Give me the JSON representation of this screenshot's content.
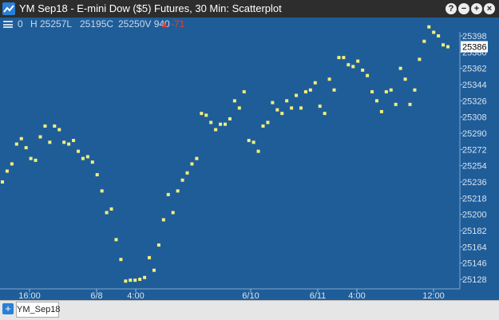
{
  "window": {
    "title": "YM Sep18 - E-mini Dow ($5) Futures, 30 Min: Scatterplot",
    "buttons": {
      "help": "?",
      "minimize": "−",
      "maximize": "+",
      "close": "×"
    }
  },
  "quote": {
    "open": "0",
    "high": "H  25257L",
    "low": "",
    "close": "25195C",
    "volume": "25250V  940",
    "change_arrow": "▲",
    "change": "-71"
  },
  "chart_data": {
    "type": "scatter",
    "marker_color": "#f3f07a",
    "background": "#1f5d99",
    "ylim": [
      25120,
      25408
    ],
    "y_ticks": [
      "25398",
      "25380",
      "25362",
      "25344",
      "25326",
      "25308",
      "25290",
      "25272",
      "25254",
      "25236",
      "25218",
      "25200",
      "25182",
      "25164",
      "25146",
      "25128"
    ],
    "x_ticks": [
      "16:00",
      "6/8",
      "4:00",
      "6/10",
      "6/11",
      "4:00",
      "12:00"
    ],
    "current_price_label": "25386",
    "points": [
      [
        0,
        25236
      ],
      [
        1,
        25248
      ],
      [
        2,
        25256
      ],
      [
        3,
        25278
      ],
      [
        4,
        25284
      ],
      [
        5,
        25274
      ],
      [
        6,
        25262
      ],
      [
        7,
        25260
      ],
      [
        8,
        25286
      ],
      [
        9,
        25298
      ],
      [
        10,
        25280
      ],
      [
        11,
        25298
      ],
      [
        12,
        25294
      ],
      [
        13,
        25280
      ],
      [
        14,
        25278
      ],
      [
        15,
        25282
      ],
      [
        16,
        25270
      ],
      [
        17,
        25262
      ],
      [
        18,
        25264
      ],
      [
        19,
        25258
      ],
      [
        20,
        25244
      ],
      [
        21,
        25226
      ],
      [
        22,
        25202
      ],
      [
        23,
        25206
      ],
      [
        24,
        25172
      ],
      [
        25,
        25150
      ],
      [
        26,
        25126
      ],
      [
        27,
        25127
      ],
      [
        28,
        25127
      ],
      [
        29,
        25128
      ],
      [
        30,
        25130
      ],
      [
        31,
        25152
      ],
      [
        32,
        25138
      ],
      [
        33,
        25166
      ],
      [
        34,
        25194
      ],
      [
        35,
        25222
      ],
      [
        36,
        25202
      ],
      [
        37,
        25226
      ],
      [
        38,
        25238
      ],
      [
        39,
        25246
      ],
      [
        40,
        25256
      ],
      [
        41,
        25262
      ],
      [
        42,
        25312
      ],
      [
        43,
        25310
      ],
      [
        44,
        25302
      ],
      [
        45,
        25294
      ],
      [
        46,
        25300
      ],
      [
        47,
        25300
      ],
      [
        48,
        25306
      ],
      [
        49,
        25326
      ],
      [
        50,
        25318
      ],
      [
        51,
        25336
      ],
      [
        52,
        25282
      ],
      [
        53,
        25280
      ],
      [
        54,
        25270
      ],
      [
        55,
        25298
      ],
      [
        56,
        25302
      ],
      [
        57,
        25324
      ],
      [
        58,
        25316
      ],
      [
        59,
        25312
      ],
      [
        60,
        25326
      ],
      [
        61,
        25318
      ],
      [
        62,
        25332
      ],
      [
        63,
        25318
      ],
      [
        64,
        25336
      ],
      [
        65,
        25338
      ],
      [
        66,
        25346
      ],
      [
        67,
        25320
      ],
      [
        68,
        25312
      ],
      [
        69,
        25350
      ],
      [
        70,
        25338
      ],
      [
        71,
        25374
      ],
      [
        72,
        25374
      ],
      [
        73,
        25366
      ],
      [
        74,
        25364
      ],
      [
        75,
        25370
      ],
      [
        76,
        25360
      ],
      [
        77,
        25354
      ],
      [
        78,
        25336
      ],
      [
        79,
        25326
      ],
      [
        80,
        25314
      ],
      [
        81,
        25336
      ],
      [
        82,
        25338
      ],
      [
        83,
        25322
      ],
      [
        84,
        25362
      ],
      [
        85,
        25350
      ],
      [
        86,
        25322
      ],
      [
        87,
        25338
      ],
      [
        88,
        25372
      ],
      [
        89,
        25392
      ],
      [
        90,
        25408
      ],
      [
        91,
        25402
      ],
      [
        92,
        25398
      ],
      [
        93,
        25388
      ],
      [
        94,
        25386
      ]
    ]
  },
  "tabs": [
    {
      "label": "YM_Sep18"
    }
  ],
  "add_tab": "+"
}
